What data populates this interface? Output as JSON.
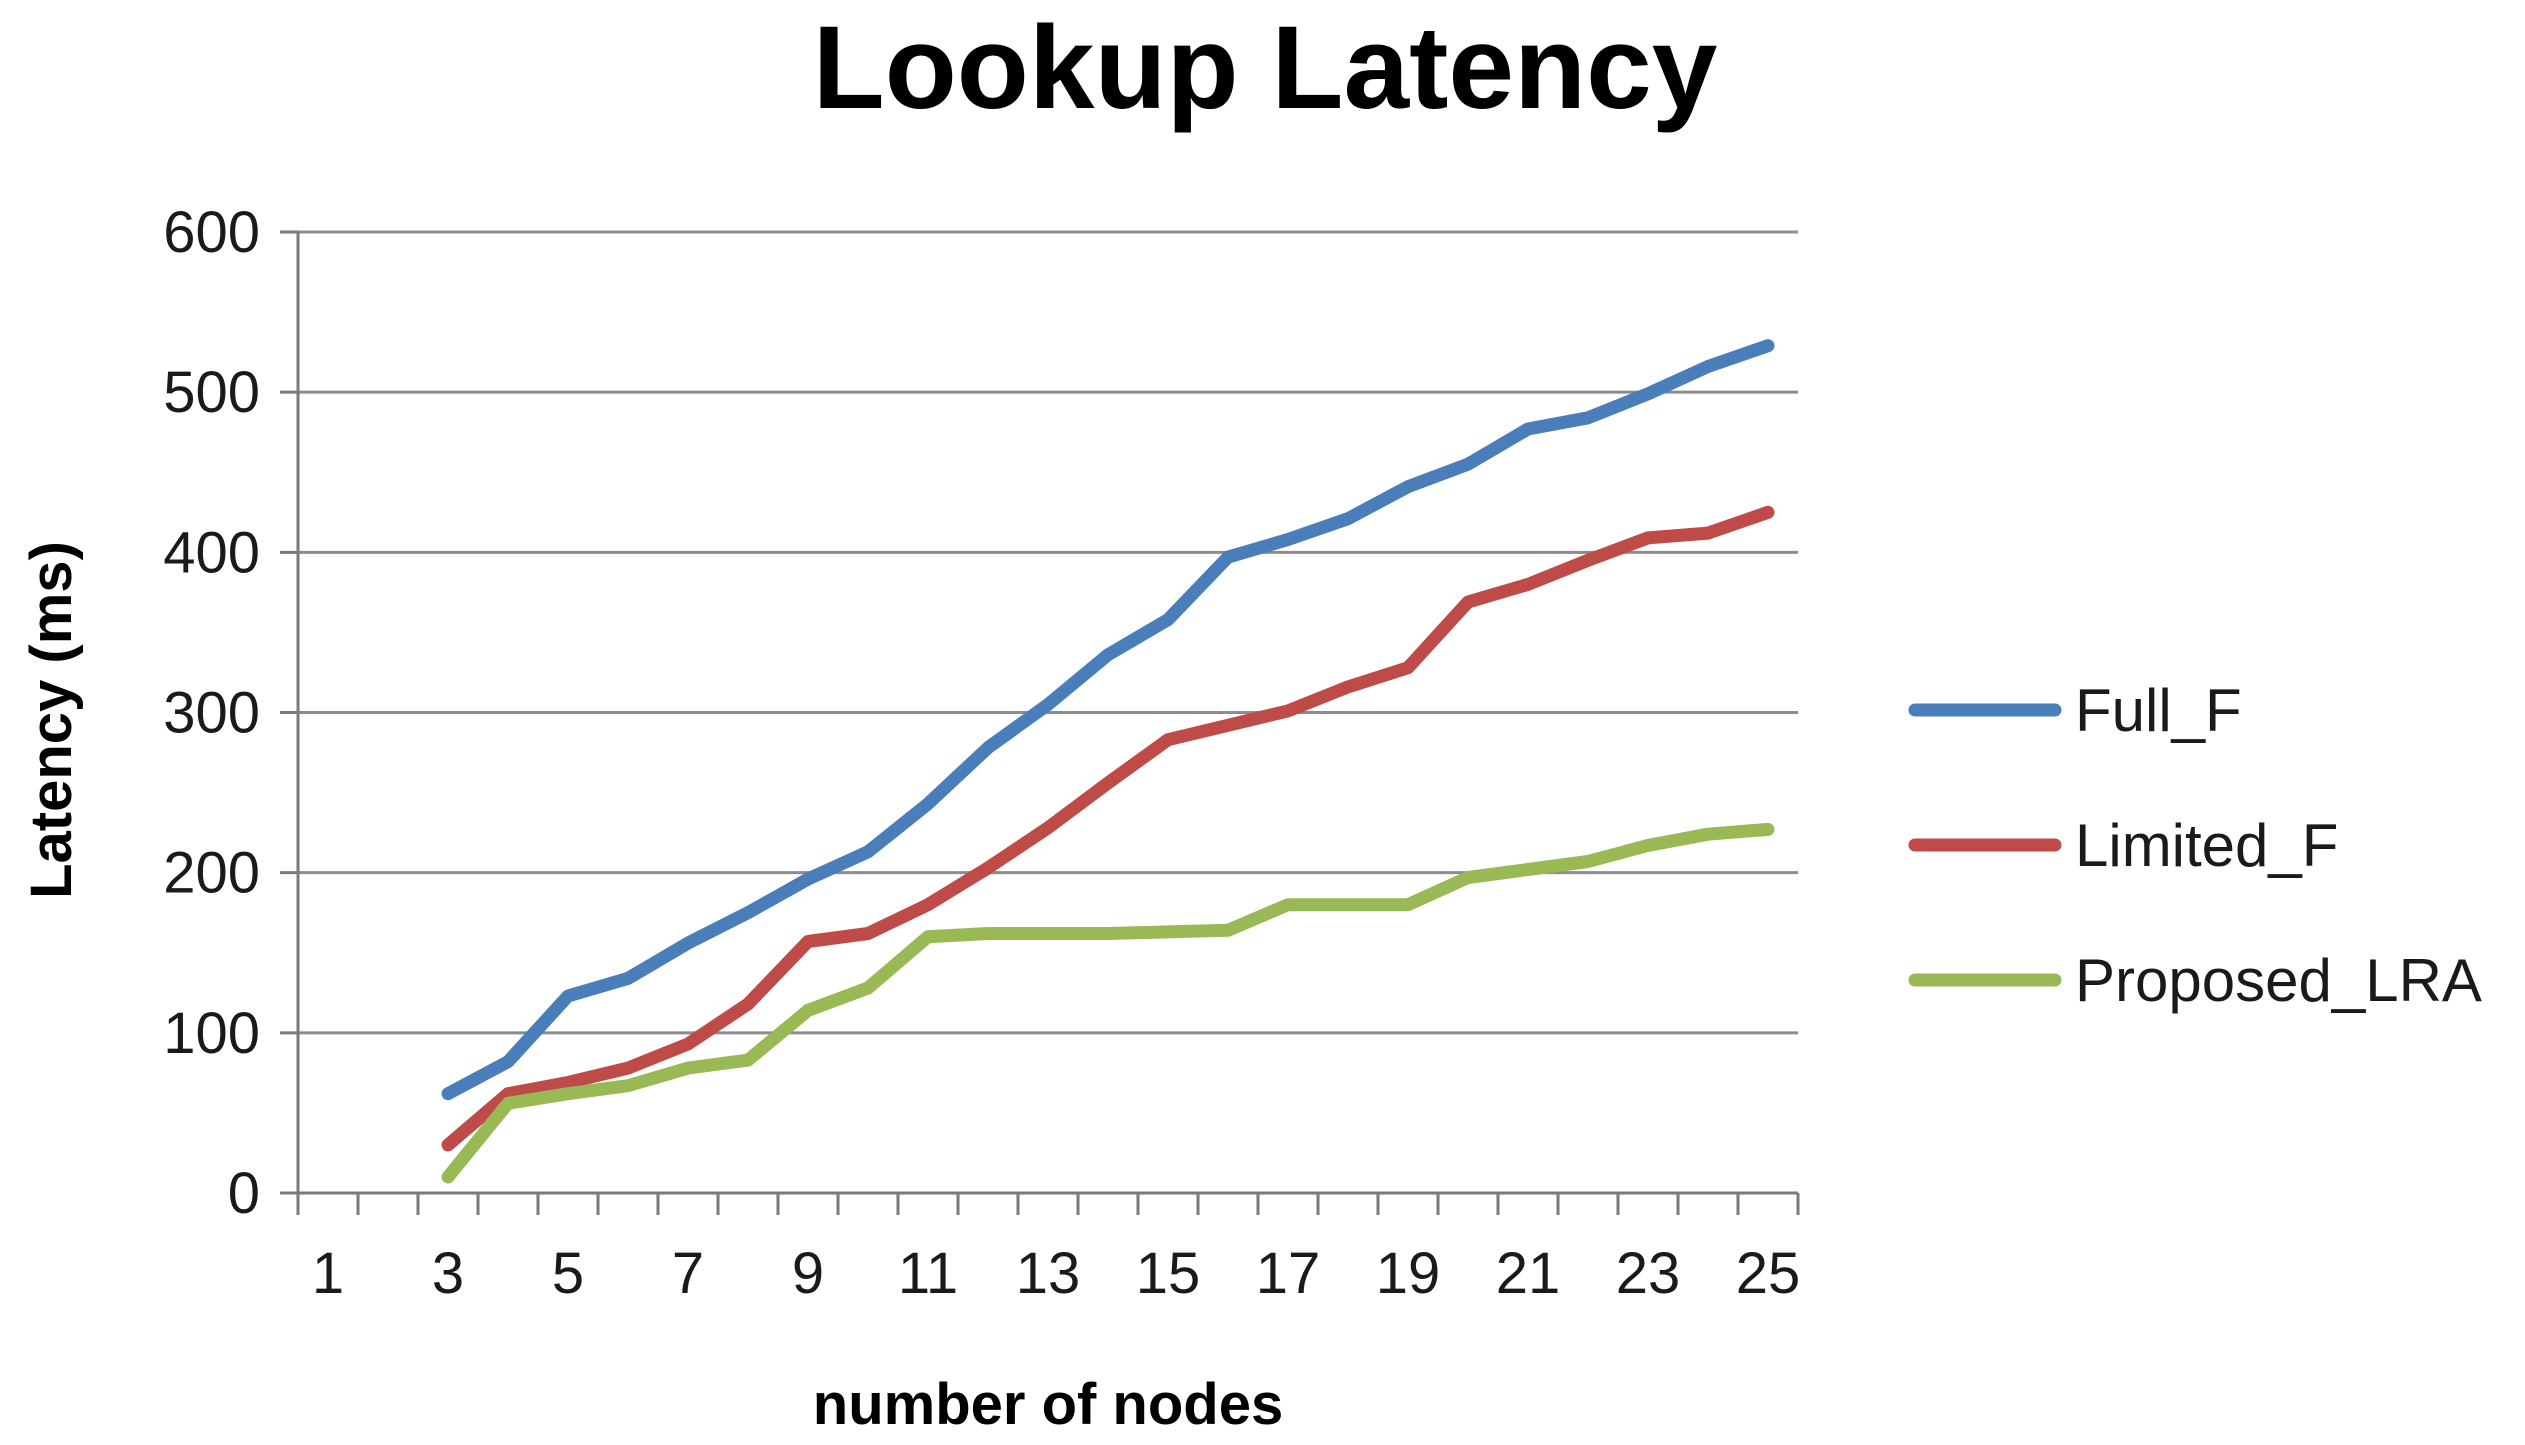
{
  "chart_data": {
    "type": "line",
    "title": "Lookup Latency",
    "xlabel": "number of nodes",
    "ylabel": "Latency  (ms)",
    "ylim": [
      0,
      600
    ],
    "yticks": [
      0,
      100,
      200,
      300,
      400,
      500,
      600
    ],
    "x_tick_labels": [
      "1",
      "3",
      "5",
      "7",
      "9",
      "11",
      "13",
      "15",
      "17",
      "19",
      "21",
      "23",
      "25"
    ],
    "x": [
      3,
      4,
      5,
      6,
      7,
      8,
      9,
      10,
      11,
      12,
      13,
      14,
      15,
      16,
      17,
      18,
      19,
      20,
      21,
      22,
      23,
      24,
      25
    ],
    "grid": true,
    "legend_position": "right",
    "series": [
      {
        "name": "Full_F",
        "color": "#4a7ebb",
        "values": [
          62,
          82,
          123,
          134,
          156,
          175,
          196,
          213,
          243,
          278,
          305,
          336,
          358,
          397,
          408,
          421,
          441,
          455,
          477,
          484,
          499,
          516,
          529
        ]
      },
      {
        "name": "Limited_F",
        "color": "#be4b48",
        "values": [
          30,
          62,
          69,
          78,
          93,
          118,
          157,
          162,
          180,
          203,
          228,
          256,
          283,
          292,
          301,
          316,
          328,
          369,
          380,
          395,
          409,
          412,
          425
        ]
      },
      {
        "name": "Proposed_LRA",
        "color": "#98b954",
        "values": [
          10,
          56,
          62,
          67,
          78,
          83,
          114,
          128,
          160,
          162,
          162,
          162,
          163,
          164,
          180,
          180,
          180,
          197,
          202,
          207,
          217,
          224,
          227
        ]
      }
    ]
  }
}
